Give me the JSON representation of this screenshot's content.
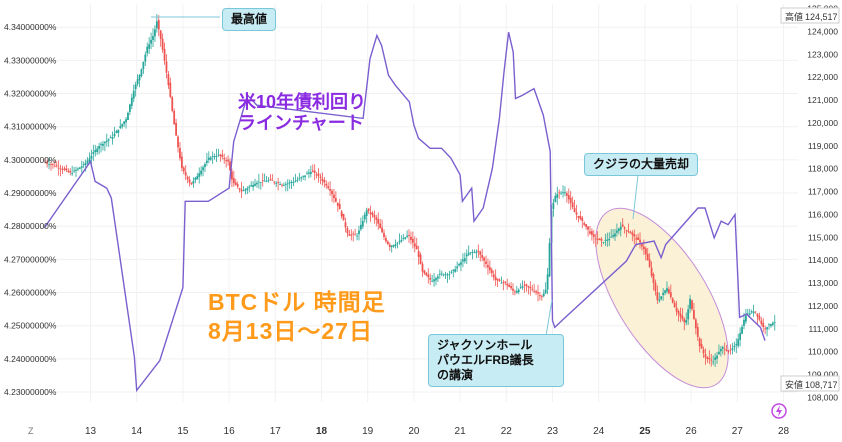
{
  "chart_data": {
    "type": "candlestick+line",
    "title": "BTCドル 時間足\n8月13日〜27日",
    "overlay_title": "米10年債利回り\nラインチャート",
    "x_ticks": [
      "13",
      "14",
      "15",
      "16",
      "17",
      "18",
      "19",
      "20",
      "21",
      "22",
      "23",
      "24",
      "25",
      "26",
      "27",
      "28"
    ],
    "x_corner_label": "Z",
    "left_axis": {
      "ylim": [
        4.227,
        4.347
      ],
      "ticks": [
        "4.34000000%",
        "4.33000000%",
        "4.32000000%",
        "4.31000000%",
        "4.30000000%",
        "4.29000000%",
        "4.28000000%",
        "4.27000000%",
        "4.26000000%",
        "4.25000000%",
        "4.24000000%",
        "4.23000000%"
      ]
    },
    "right_axis": {
      "ylim": [
        107.8,
        125.2
      ],
      "ticks": [
        "125,000",
        "124,000",
        "123,000",
        "122,000",
        "121,000",
        "120,000",
        "119,000",
        "118,000",
        "117,000",
        "116,000",
        "115,000",
        "114,000",
        "113,000",
        "112,000",
        "111,000",
        "110,000",
        "109,000",
        "108,000"
      ],
      "high": {
        "label": "高値",
        "value": "124,517"
      },
      "low": {
        "label": "安値",
        "value": "108,717"
      }
    },
    "btc_path": [
      [
        12.0,
        118.3
      ],
      [
        12.3,
        118.1
      ],
      [
        12.6,
        117.8
      ],
      [
        12.9,
        118.2
      ],
      [
        13.2,
        119.0
      ],
      [
        13.5,
        119.4
      ],
      [
        13.8,
        120.2
      ],
      [
        13.95,
        121.4
      ],
      [
        14.1,
        122.2
      ],
      [
        14.25,
        123.3
      ],
      [
        14.4,
        123.9
      ],
      [
        14.45,
        124.5
      ],
      [
        14.55,
        123.6
      ],
      [
        14.7,
        121.8
      ],
      [
        14.85,
        119.7
      ],
      [
        15.0,
        118.0
      ],
      [
        15.2,
        117.3
      ],
      [
        15.4,
        117.9
      ],
      [
        15.6,
        118.5
      ],
      [
        15.8,
        118.6
      ],
      [
        16.0,
        118.3
      ],
      [
        16.1,
        117.4
      ],
      [
        16.3,
        117.0
      ],
      [
        16.6,
        117.4
      ],
      [
        16.9,
        117.5
      ],
      [
        17.2,
        117.3
      ],
      [
        17.5,
        117.5
      ],
      [
        17.8,
        117.9
      ],
      [
        18.0,
        117.6
      ],
      [
        18.2,
        117.1
      ],
      [
        18.4,
        116.3
      ],
      [
        18.6,
        115.1
      ],
      [
        18.8,
        115.1
      ],
      [
        19.0,
        116.2
      ],
      [
        19.2,
        115.8
      ],
      [
        19.4,
        114.9
      ],
      [
        19.5,
        114.6
      ],
      [
        19.7,
        114.8
      ],
      [
        19.9,
        115.1
      ],
      [
        20.1,
        114.4
      ],
      [
        20.2,
        113.5
      ],
      [
        20.4,
        113.1
      ],
      [
        20.6,
        113.4
      ],
      [
        20.8,
        113.4
      ],
      [
        21.0,
        113.8
      ],
      [
        21.2,
        114.3
      ],
      [
        21.4,
        114.4
      ],
      [
        21.6,
        113.8
      ],
      [
        21.8,
        113.1
      ],
      [
        22.0,
        113.0
      ],
      [
        22.2,
        112.6
      ],
      [
        22.4,
        112.9
      ],
      [
        22.6,
        112.7
      ],
      [
        22.8,
        112.4
      ],
      [
        22.9,
        112.8
      ],
      [
        23.0,
        116.2
      ],
      [
        23.1,
        116.9
      ],
      [
        23.3,
        117.0
      ],
      [
        23.5,
        116.1
      ],
      [
        23.7,
        115.6
      ],
      [
        23.9,
        115.0
      ],
      [
        24.1,
        114.8
      ],
      [
        24.3,
        115.0
      ],
      [
        24.5,
        115.5
      ],
      [
        24.7,
        115.2
      ],
      [
        24.9,
        114.8
      ],
      [
        25.0,
        114.5
      ],
      [
        25.1,
        113.9
      ],
      [
        25.3,
        112.2
      ],
      [
        25.5,
        112.8
      ],
      [
        25.7,
        111.8
      ],
      [
        25.9,
        111.2
      ],
      [
        26.0,
        112.3
      ],
      [
        26.2,
        110.3
      ],
      [
        26.35,
        109.7
      ],
      [
        26.5,
        109.6
      ],
      [
        26.7,
        110.2
      ],
      [
        26.85,
        110.0
      ],
      [
        27.0,
        110.3
      ],
      [
        27.2,
        111.6
      ],
      [
        27.4,
        111.8
      ],
      [
        27.6,
        111.0
      ],
      [
        27.8,
        111.3
      ]
    ],
    "yield_path": [
      [
        12.0,
        4.2795
      ],
      [
        13.0,
        4.2995
      ],
      [
        13.1,
        4.2935
      ],
      [
        13.35,
        4.2915
      ],
      [
        13.45,
        4.2885
      ],
      [
        13.95,
        4.2405
      ],
      [
        14.0,
        4.2305
      ],
      [
        14.5,
        4.2395
      ],
      [
        15.0,
        4.2615
      ],
      [
        15.05,
        4.2875
      ],
      [
        15.55,
        4.2875
      ],
      [
        16.0,
        4.2915
      ],
      [
        16.1,
        4.3055
      ],
      [
        16.4,
        4.3195
      ],
      [
        16.6,
        4.3165
      ],
      [
        18.9,
        4.3125
      ],
      [
        19.05,
        4.3305
      ],
      [
        19.2,
        4.3375
      ],
      [
        19.3,
        4.3345
      ],
      [
        19.45,
        4.3255
      ],
      [
        19.5,
        4.3245
      ],
      [
        19.6,
        4.3225
      ],
      [
        19.9,
        4.3175
      ],
      [
        20.0,
        4.3105
      ],
      [
        20.1,
        4.3065
      ],
      [
        20.35,
        4.3035
      ],
      [
        20.6,
        4.3035
      ],
      [
        20.8,
        4.3005
      ],
      [
        21.0,
        4.2955
      ],
      [
        21.05,
        4.2875
      ],
      [
        21.25,
        4.2915
      ],
      [
        21.3,
        4.2815
      ],
      [
        21.5,
        4.2855
      ],
      [
        21.7,
        4.2975
      ],
      [
        21.85,
        4.3125
      ],
      [
        21.95,
        4.3265
      ],
      [
        22.05,
        4.3385
      ],
      [
        22.15,
        4.3325
      ],
      [
        22.2,
        4.3185
      ],
      [
        22.35,
        4.3195
      ],
      [
        22.6,
        4.3215
      ],
      [
        22.8,
        4.3135
      ],
      [
        22.95,
        4.3025
      ],
      [
        23.0,
        4.2515
      ],
      [
        23.05,
        4.2495
      ],
      [
        23.2,
        4.2515
      ],
      [
        24.6,
        4.2695
      ],
      [
        24.8,
        4.2745
      ],
      [
        25.2,
        4.2755
      ],
      [
        25.35,
        4.2705
      ],
      [
        25.45,
        4.2745
      ],
      [
        26.15,
        4.2855
      ],
      [
        26.3,
        4.2855
      ],
      [
        26.5,
        4.2765
      ],
      [
        26.65,
        4.2815
      ],
      [
        26.8,
        4.2805
      ],
      [
        26.95,
        4.2835
      ],
      [
        27.05,
        4.2525
      ],
      [
        27.2,
        4.2535
      ],
      [
        27.5,
        4.2495
      ],
      [
        27.6,
        4.2455
      ]
    ]
  },
  "annotations": {
    "max_label": "最高値",
    "jackson_label": "ジャクソンホール\nパウエルFRB議長\nの講演",
    "whale_label": "クジラの大量売却"
  },
  "colors": {
    "up": "#26a69a",
    "down": "#ef5350",
    "yield_line": "#7a5fcf",
    "ellipse_fill": "#fbf1d6",
    "ellipse_stroke": "#c58dd8",
    "callout_line": "#7cc7d9"
  },
  "icons": {
    "bolt": "lightning-icon"
  }
}
